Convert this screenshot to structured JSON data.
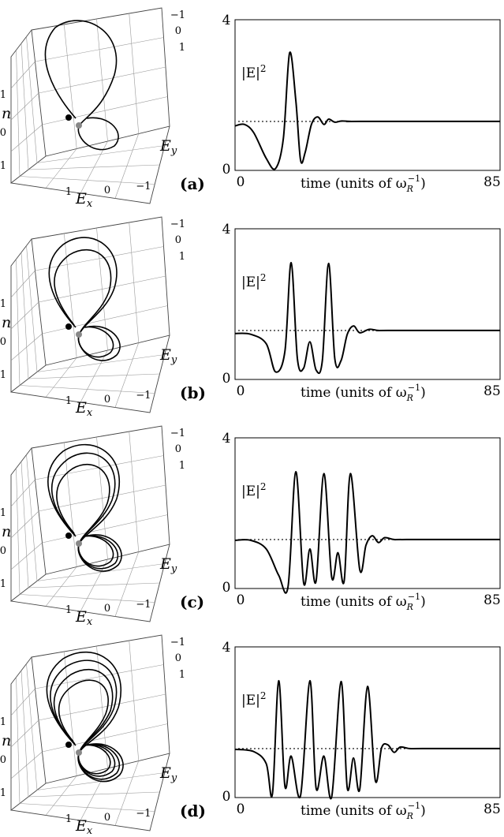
{
  "chart_data": [
    {
      "panel": "(a)",
      "type": "line",
      "x": [
        0,
        3,
        6,
        10,
        13,
        15.5,
        17.5,
        19.5,
        21,
        22.5,
        24.5,
        26.5,
        28.5,
        30,
        32,
        34,
        37,
        40,
        85
      ],
      "series": [
        {
          "values": [
            1.18,
            1.22,
            1.0,
            0.32,
            0.05,
            0.85,
            3.12,
            1.85,
            0.28,
            0.48,
            1.22,
            1.42,
            1.22,
            1.36,
            1.28,
            1.31,
            1.3,
            1.3,
            1.3
          ]
        }
      ],
      "reference_level": 1.3,
      "ylim": [
        0,
        4
      ],
      "yticks": [
        0,
        4
      ],
      "xlim": [
        0,
        85
      ],
      "xticks": [
        0,
        85
      ],
      "ylabel": "|E|",
      "ylabel_sup": "2",
      "xlabel": "time (units of ω",
      "xlabel_sub": "R",
      "xlabel_sup": "−1",
      "xlabel_end": ")",
      "phase_axes": {
        "labels": [
          "n",
          "E",
          "E"
        ],
        "label_subs": [
          "",
          "x",
          "y"
        ],
        "ticks_n": [
          "1",
          "0",
          "−1"
        ],
        "ticks_ex": [
          "1",
          "0",
          "−1"
        ],
        "ticks_ey": [
          "−1",
          "0",
          "1"
        ]
      }
    },
    {
      "panel": "(b)",
      "type": "line",
      "x": [
        0,
        5,
        10,
        13,
        16,
        18,
        20,
        22,
        24,
        26,
        28,
        30,
        32,
        34,
        36,
        38,
        40,
        43,
        46,
        49,
        85
      ],
      "series": [
        {
          "values": [
            1.22,
            1.2,
            0.95,
            0.2,
            0.75,
            3.1,
            0.55,
            0.3,
            1.0,
            0.25,
            0.5,
            3.08,
            0.55,
            0.5,
            1.2,
            1.42,
            1.24,
            1.33,
            1.3,
            1.3,
            1.3
          ]
        }
      ],
      "reference_level": 1.3,
      "ylim": [
        0,
        4
      ],
      "yticks": [
        0,
        4
      ],
      "xlim": [
        0,
        85
      ],
      "xticks": [
        0,
        85
      ],
      "ylabel": "|E|",
      "ylabel_sup": "2",
      "xlabel": "time (units of ω",
      "xlabel_sub": "R",
      "xlabel_sup": "−1",
      "xlabel_end": ")",
      "phase_axes": {
        "labels": [
          "n",
          "E",
          "E"
        ],
        "label_subs": [
          "",
          "x",
          "y"
        ],
        "ticks_n": [
          "1",
          "0",
          "−1"
        ],
        "ticks_ex": [
          "1",
          "0",
          "−1"
        ],
        "ticks_ey": [
          "−1",
          "0",
          "1"
        ]
      }
    },
    {
      "panel": "(c)",
      "type": "line",
      "x": [
        0,
        5,
        10,
        14,
        17,
        19.5,
        22,
        24,
        26,
        28.5,
        31,
        33,
        35,
        37,
        40,
        42,
        44,
        46,
        48,
        51,
        55,
        85
      ],
      "series": [
        {
          "values": [
            1.28,
            1.28,
            1.05,
            0.35,
            0.05,
            3.1,
            0.15,
            1.05,
            0.2,
            3.05,
            0.3,
            0.95,
            0.2,
            3.05,
            0.5,
            1.15,
            1.4,
            1.22,
            1.35,
            1.3,
            1.3,
            1.3
          ]
        }
      ],
      "reference_level": 1.3,
      "ylim": [
        0,
        4
      ],
      "yticks": [
        0,
        4
      ],
      "xlim": [
        0,
        85
      ],
      "xticks": [
        0,
        85
      ],
      "ylabel": "|E|",
      "ylabel_sup": "2",
      "xlabel": "time (units of ω",
      "xlabel_sub": "R",
      "xlabel_sup": "−1",
      "xlabel_end": ")",
      "phase_axes": {
        "labels": [
          "n",
          "E",
          "E"
        ],
        "label_subs": [
          "",
          "x",
          "y"
        ],
        "ticks_n": [
          "1",
          "0",
          "−1"
        ],
        "ticks_ex": [
          "1",
          "0",
          "−1"
        ],
        "ticks_ey": [
          "−1",
          "0",
          "1"
        ]
      }
    },
    {
      "panel": "(d)",
      "type": "line",
      "x": [
        0,
        6,
        10,
        12,
        14,
        16,
        18,
        21,
        24,
        26,
        28.5,
        31,
        34,
        36,
        38,
        40,
        42.5,
        45,
        47,
        49,
        51,
        53,
        56,
        60,
        85
      ],
      "series": [
        {
          "values": [
            1.28,
            1.22,
            0.9,
            0.1,
            3.1,
            0.3,
            1.1,
            0.05,
            3.1,
            0.25,
            1.1,
            0.02,
            3.08,
            0.25,
            1.05,
            0.22,
            2.95,
            0.45,
            1.32,
            1.4,
            1.2,
            1.34,
            1.3,
            1.3,
            1.3
          ]
        }
      ],
      "reference_level": 1.3,
      "ylim": [
        0,
        4
      ],
      "yticks": [
        0,
        4
      ],
      "xlim": [
        0,
        85
      ],
      "xticks": [
        0,
        85
      ],
      "ylabel": "|E|",
      "ylabel_sup": "2",
      "xlabel": "time (units of ω",
      "xlabel_sub": "R",
      "xlabel_sup": "−1",
      "xlabel_end": ")",
      "phase_axes": {
        "labels": [
          "n",
          "E",
          "E"
        ],
        "label_subs": [
          "",
          "x",
          "y"
        ],
        "ticks_n": [
          "1",
          "0",
          "−1"
        ],
        "ticks_ex": [
          "1",
          "0",
          "−1"
        ],
        "ticks_ey": [
          "−1",
          "0",
          "1"
        ]
      }
    }
  ]
}
